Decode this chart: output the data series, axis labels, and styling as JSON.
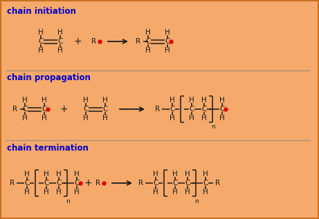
{
  "bg_color": "#F5A96B",
  "border_color": "#C87020",
  "text_color": "#1a1a1a",
  "title_color": "#0000CC",
  "red_dot_color": "#DD0000",
  "sep_color": "#A09080",
  "figsize": [
    4.61,
    3.17
  ],
  "dpi": 100,
  "sections": [
    "chain initiation",
    "chain propagation",
    "chain termination"
  ]
}
